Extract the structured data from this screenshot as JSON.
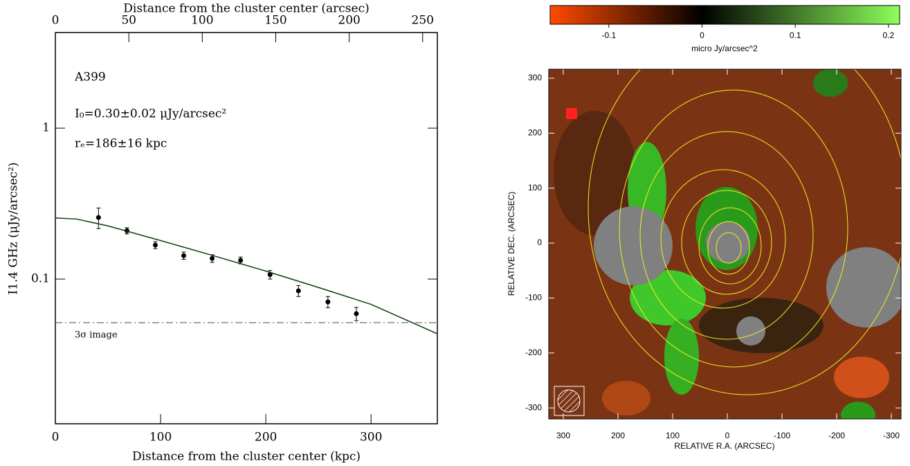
{
  "chart_data": [
    {
      "type": "profile",
      "xlabel": "Distance from the cluster center (kpc)",
      "x2label": "Distance from the cluster center (arcsec)",
      "ylabel": "I1.4 GHz (μJy/arcsec²)",
      "xlim": [
        0,
        363
      ],
      "xticks": [
        0,
        100,
        200,
        300
      ],
      "x2lim": [
        0,
        260
      ],
      "x2ticks": [
        0,
        50,
        100,
        150,
        200,
        250
      ],
      "ylim": [
        0.011,
        4.3
      ],
      "yticks": [
        0.1,
        1
      ],
      "log_y": true,
      "annotations": [
        "A399",
        "I₀=0.30±0.02 μJy/arcsec²",
        "rₑ=186±16 kpc"
      ],
      "series": [
        {
          "type": "errorbar",
          "color": "#000000",
          "x": [
            41,
            68,
            95,
            122,
            149,
            176,
            204,
            231,
            259,
            286
          ],
          "values": [
            0.256,
            0.209,
            0.168,
            0.143,
            0.137,
            0.133,
            0.107,
            0.0836,
            0.0706,
            0.059
          ],
          "errors": [
            0.04,
            0.01,
            0.009,
            0.008,
            0.008,
            0.007,
            0.007,
            0.007,
            0.006,
            0.006
          ]
        },
        {
          "type": "line",
          "color": "#0b3d0b",
          "x": [
            0,
            20,
            50,
            100,
            150,
            200,
            250,
            300,
            363
          ],
          "values": [
            0.254,
            0.25,
            0.225,
            0.18,
            0.143,
            0.113,
            0.088,
            0.068,
            0.0434
          ]
        }
      ],
      "hline": {
        "value": 0.0514,
        "label": "3σ image"
      }
    },
    {
      "type": "image",
      "colorbar_label": "micro Jy/arcsec^2",
      "clim": [
        -0.163,
        0.212
      ],
      "cticks": [
        -0.1,
        0,
        0.1,
        0.2
      ],
      "colormap": [
        "#ff4a00",
        "#000000",
        "#8cff5a"
      ],
      "xlabel": "RELATIVE R.A.  (ARCSEC)",
      "ylabel": "RELATIVE DEC. (ARCSEC)",
      "xlim": [
        326.6,
        -317.7
      ],
      "xticks": [
        300,
        200,
        100,
        0,
        -100,
        -200,
        -300
      ],
      "ylim": [
        -320,
        316.4
      ],
      "yticks": [
        300,
        200,
        100,
        0,
        -100,
        -200,
        -300
      ]
    }
  ]
}
